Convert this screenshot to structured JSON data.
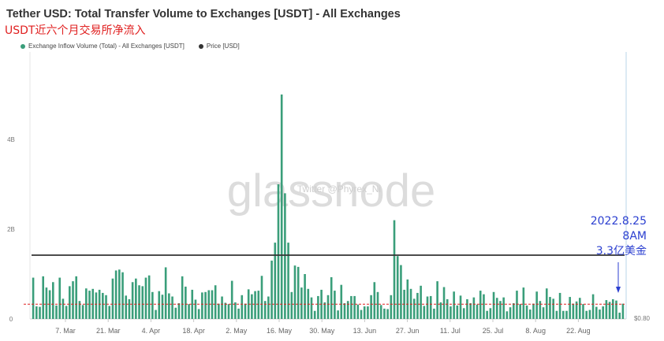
{
  "header": {
    "title": "Tether USD: Total Transfer Volume to Exchanges [USDT] - All Exchanges",
    "subtitle": "USDT近六个月交易所净流入"
  },
  "legend": [
    {
      "label": "Exchange Inflow Volume (Total) - All Exchanges [USDT]",
      "color": "#3a9e7a"
    },
    {
      "label": "Price [USD]",
      "color": "#333333"
    }
  ],
  "watermark": {
    "brand": "glassnode",
    "handle": "Twitter @Phyrex_Ni"
  },
  "annotation": {
    "date": "2022.8.25",
    "time": "8AM",
    "amount": "3.3亿美金",
    "color": "#2b3fd0"
  },
  "chart_data": {
    "type": "bar",
    "title": "Tether USD: Total Transfer Volume to Exchanges [USDT] - All Exchanges",
    "x_tick_labels": [
      "7. Mar",
      "21. Mar",
      "4. Apr",
      "18. Apr",
      "2. May",
      "16. May",
      "30. May",
      "13. Jun",
      "27. Jun",
      "11. Jul",
      "25. Jul",
      "8. Aug",
      "22. Aug"
    ],
    "y_tick_labels": [
      "0",
      "2B",
      "4B"
    ],
    "y_right_tick_labels": [
      "$0.80"
    ],
    "ylim": [
      0,
      5.0
    ],
    "x_start_date": "2022-02-27",
    "x_end_date": "2022-08-25",
    "series": [
      {
        "name": "Exchange Inflow Volume (Total) - All Exchanges [USDT]",
        "unit": "B USDT",
        "color": "#3a9e7a",
        "values": [
          0.92,
          0.28,
          0.27,
          0.95,
          0.7,
          0.64,
          0.82,
          0.3,
          0.92,
          0.45,
          0.29,
          0.73,
          0.84,
          0.95,
          0.4,
          0.31,
          0.68,
          0.63,
          0.67,
          0.59,
          0.65,
          0.58,
          0.53,
          0.29,
          0.9,
          1.08,
          1.1,
          1.04,
          0.52,
          0.44,
          0.82,
          0.9,
          0.75,
          0.73,
          0.92,
          0.97,
          0.6,
          0.2,
          0.62,
          0.54,
          1.15,
          0.57,
          0.5,
          0.25,
          0.35,
          0.95,
          0.72,
          0.33,
          0.65,
          0.43,
          0.22,
          0.59,
          0.6,
          0.64,
          0.64,
          0.75,
          0.34,
          0.5,
          0.36,
          0.33,
          0.85,
          0.37,
          0.23,
          0.53,
          0.34,
          0.66,
          0.55,
          0.62,
          0.63,
          0.96,
          0.4,
          0.5,
          1.3,
          1.7,
          3.0,
          5.0,
          2.8,
          1.7,
          0.6,
          1.19,
          1.16,
          0.7,
          1.0,
          0.67,
          0.48,
          0.18,
          0.51,
          0.65,
          0.37,
          0.53,
          0.93,
          0.63,
          0.19,
          0.76,
          0.35,
          0.4,
          0.51,
          0.51,
          0.32,
          0.2,
          0.28,
          0.28,
          0.53,
          0.82,
          0.6,
          0.31,
          0.23,
          0.22,
          0.53,
          2.2,
          1.4,
          1.2,
          0.65,
          0.88,
          0.67,
          0.45,
          0.58,
          0.74,
          0.29,
          0.5,
          0.51,
          0.23,
          0.84,
          0.37,
          0.71,
          0.44,
          0.28,
          0.61,
          0.3,
          0.52,
          0.24,
          0.44,
          0.35,
          0.48,
          0.32,
          0.63,
          0.55,
          0.18,
          0.24,
          0.6,
          0.47,
          0.4,
          0.48,
          0.17,
          0.26,
          0.35,
          0.63,
          0.33,
          0.7,
          0.3,
          0.21,
          0.34,
          0.61,
          0.4,
          0.26,
          0.68,
          0.49,
          0.45,
          0.18,
          0.58,
          0.18,
          0.18,
          0.49,
          0.34,
          0.39,
          0.47,
          0.33,
          0.18,
          0.2,
          0.55,
          0.27,
          0.21,
          0.28,
          0.42,
          0.38,
          0.44,
          0.41,
          0.14,
          0.34
        ]
      },
      {
        "name": "Price [USD]",
        "unit": "USD",
        "color": "#333333",
        "values": [
          1.0,
          1.0,
          1.0,
          1.0,
          1.0
        ]
      }
    ],
    "reference_line": {
      "style": "dashed",
      "color": "#e02020",
      "value": 0.33
    },
    "grid": false,
    "legend_position": "top-left"
  }
}
